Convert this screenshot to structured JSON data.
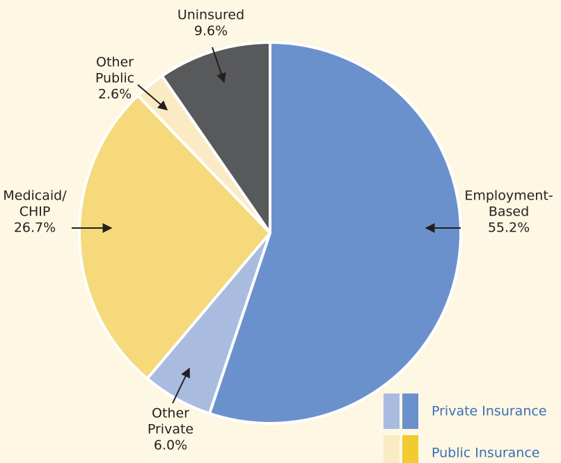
{
  "chart_data": {
    "type": "pie",
    "categories": [
      [
        "Employment-",
        "Based"
      ],
      [
        "Other",
        "Private"
      ],
      [
        "Medicaid/",
        "CHIP"
      ],
      [
        "Other",
        "Public"
      ],
      [
        "Uninsured"
      ]
    ],
    "values": [
      55.2,
      6.0,
      26.7,
      2.6,
      9.6
    ],
    "value_labels": [
      "55.2%",
      "6.0%",
      "26.7%",
      "2.6%",
      "9.6%"
    ],
    "colors": [
      "#6b91cc",
      "#a9bce0",
      "#f5d97a",
      "#faebc4",
      "#58595b"
    ],
    "legend": [
      {
        "name": "Private Insurance",
        "colors": [
          "#a9bce0",
          "#6b91cc"
        ]
      },
      {
        "name": "Public Insurance",
        "colors": [
          "#faebc4",
          "#f2cb30"
        ]
      }
    ]
  }
}
